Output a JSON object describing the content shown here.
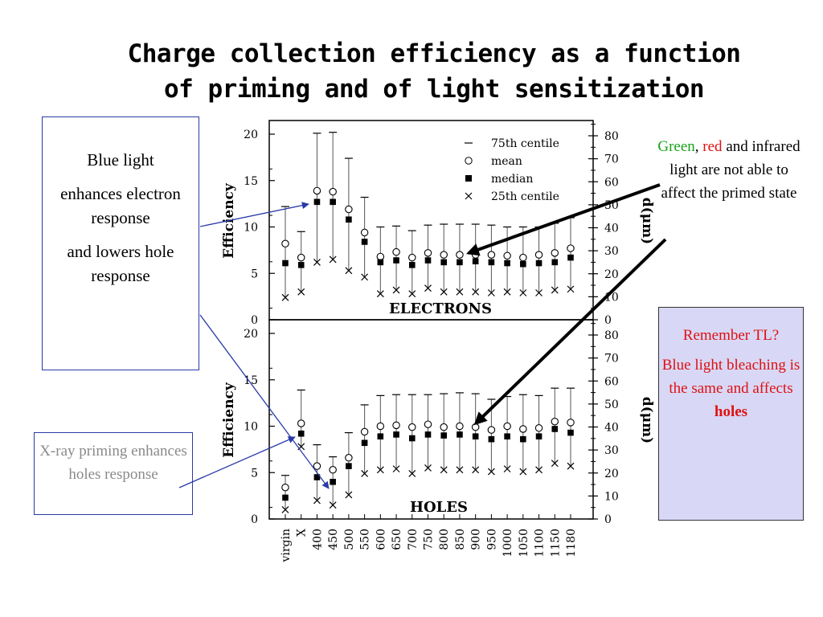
{
  "title": {
    "line1": "Charge collection efficiency as a function",
    "line2": "of priming and of light sensitization"
  },
  "annotations": {
    "blue_light": {
      "p1": "Blue light",
      "p2": "enhances electron response",
      "p3": "and lowers hole response"
    },
    "xray": {
      "text": "X-ray priming enhances holes response"
    },
    "green_red": {
      "green": "Green",
      "comma": ",",
      "red": "red",
      "rest": "and infrared light are not able to affect the primed state"
    },
    "remember": {
      "p1": "Remember TL?",
      "p2a": "Blue light bleaching is the same and affects",
      "p2b": "holes"
    }
  },
  "colors": {
    "arrow_blue": "#2a3aa8",
    "arrow_black": "#000000",
    "green": "#1aa31a",
    "red": "#e01010",
    "tl_box_bg": "#d8d8f6"
  },
  "chart_data": {
    "type": "scatter",
    "categories": [
      "virgin",
      "X",
      "400",
      "450",
      "500",
      "550",
      "600",
      "650",
      "700",
      "750",
      "800",
      "850",
      "900",
      "950",
      "1000",
      "1050",
      "1100",
      "1150",
      "1180"
    ],
    "ylabel": "Efficiency",
    "ylabel_right": "d(μm)",
    "ylim": [
      0,
      20
    ],
    "yticks": [
      0,
      5,
      10,
      15,
      20
    ],
    "ylim_right": [
      0,
      80
    ],
    "yticks_right": [
      0,
      10,
      20,
      30,
      40,
      50,
      60,
      70,
      80
    ],
    "legend": {
      "position": "top-right",
      "entries": [
        {
          "marker": "dash",
          "label": "75th centile"
        },
        {
          "marker": "open-circle",
          "label": "mean"
        },
        {
          "marker": "filled-square",
          "label": "median"
        },
        {
          "marker": "cross",
          "label": "25th centile"
        }
      ]
    },
    "panels": [
      {
        "label": "ELECTRONS",
        "series": [
          {
            "name": "75th centile",
            "values": [
              12.2,
              9.5,
              20.1,
              20.2,
              17.4,
              13.2,
              10.0,
              10.1,
              9.6,
              10.2,
              10.3,
              10.3,
              10.3,
              10.2,
              10.0,
              10.0,
              10.0,
              10.4,
              11.0
            ]
          },
          {
            "name": "mean",
            "values": [
              8.2,
              6.7,
              13.9,
              13.8,
              11.9,
              9.4,
              6.8,
              7.3,
              6.7,
              7.2,
              7.0,
              7.0,
              7.0,
              7.0,
              6.9,
              6.7,
              7.0,
              7.2,
              7.7
            ]
          },
          {
            "name": "median",
            "values": [
              6.1,
              5.9,
              12.7,
              12.7,
              10.8,
              8.4,
              6.2,
              6.4,
              5.9,
              6.4,
              6.2,
              6.2,
              6.3,
              6.2,
              6.1,
              6.0,
              6.1,
              6.2,
              6.7
            ]
          },
          {
            "name": "25th centile",
            "values": [
              2.4,
              3.0,
              6.2,
              6.5,
              5.3,
              4.6,
              2.8,
              3.2,
              2.8,
              3.4,
              3.0,
              3.0,
              3.0,
              2.9,
              3.0,
              2.9,
              2.9,
              3.2,
              3.3
            ]
          }
        ]
      },
      {
        "label": "HOLES",
        "series": [
          {
            "name": "75th centile",
            "values": [
              4.7,
              13.9,
              8.0,
              6.7,
              9.3,
              12.3,
              13.3,
              13.4,
              13.4,
              13.4,
              13.5,
              13.6,
              13.5,
              12.9,
              13.2,
              13.4,
              13.3,
              14.1,
              14.1
            ]
          },
          {
            "name": "mean",
            "values": [
              3.4,
              10.3,
              5.7,
              5.3,
              6.6,
              9.4,
              10.0,
              10.1,
              9.9,
              10.2,
              9.9,
              10.0,
              9.9,
              9.6,
              10.0,
              9.7,
              9.8,
              10.5,
              10.4
            ]
          },
          {
            "name": "median",
            "values": [
              2.3,
              9.2,
              4.5,
              4.0,
              5.7,
              8.2,
              8.9,
              9.1,
              8.7,
              9.1,
              9.0,
              9.1,
              8.9,
              8.6,
              8.9,
              8.6,
              8.9,
              9.7,
              9.3
            ]
          },
          {
            "name": "25th centile",
            "values": [
              1.0,
              7.8,
              2.0,
              1.5,
              2.6,
              4.9,
              5.3,
              5.4,
              4.9,
              5.5,
              5.3,
              5.3,
              5.3,
              5.1,
              5.4,
              5.1,
              5.3,
              6.0,
              5.7
            ]
          }
        ]
      }
    ]
  }
}
